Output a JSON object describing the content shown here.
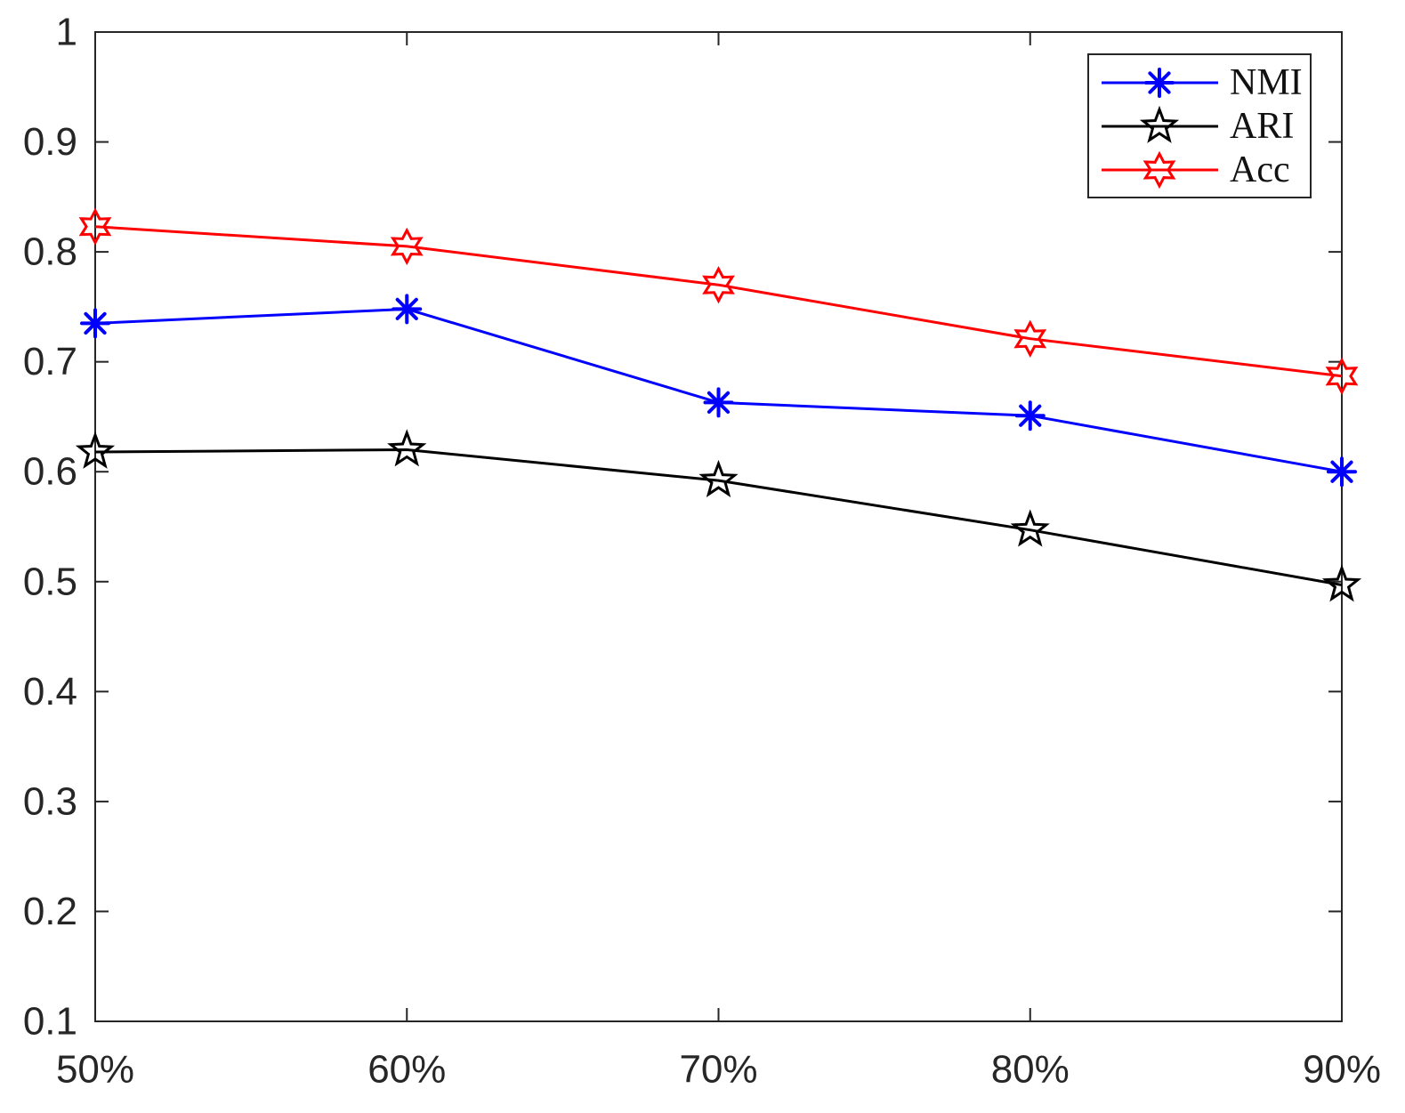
{
  "chart_data": {
    "type": "line",
    "title": "",
    "xlabel": "",
    "ylabel": "",
    "categories": [
      "50%",
      "60%",
      "70%",
      "80%",
      "90%"
    ],
    "series": [
      {
        "name": "NMI",
        "color": "#0000ff",
        "marker": "asterisk",
        "values": [
          0.735,
          0.748,
          0.663,
          0.651,
          0.6
        ]
      },
      {
        "name": "ARI",
        "color": "#000000",
        "marker": "pentagram",
        "values": [
          0.618,
          0.62,
          0.592,
          0.547,
          0.497
        ]
      },
      {
        "name": "Acc",
        "color": "#ff0000",
        "marker": "hexagram",
        "values": [
          0.823,
          0.805,
          0.77,
          0.721,
          0.687
        ]
      }
    ],
    "ylim": [
      0.1,
      1
    ],
    "yticks": [
      0.1,
      0.2,
      0.3,
      0.4,
      0.5,
      0.6,
      0.7,
      0.8,
      0.9,
      1
    ],
    "ytick_labels": [
      "0.1",
      "0.2",
      "0.3",
      "0.4",
      "0.5",
      "0.6",
      "0.7",
      "0.8",
      "0.9",
      "1"
    ],
    "grid": false,
    "legend": {
      "position": "top-right",
      "entries": [
        "NMI",
        "ARI",
        "Acc"
      ]
    },
    "axis_color": "#262626",
    "background_color": "#ffffff"
  }
}
